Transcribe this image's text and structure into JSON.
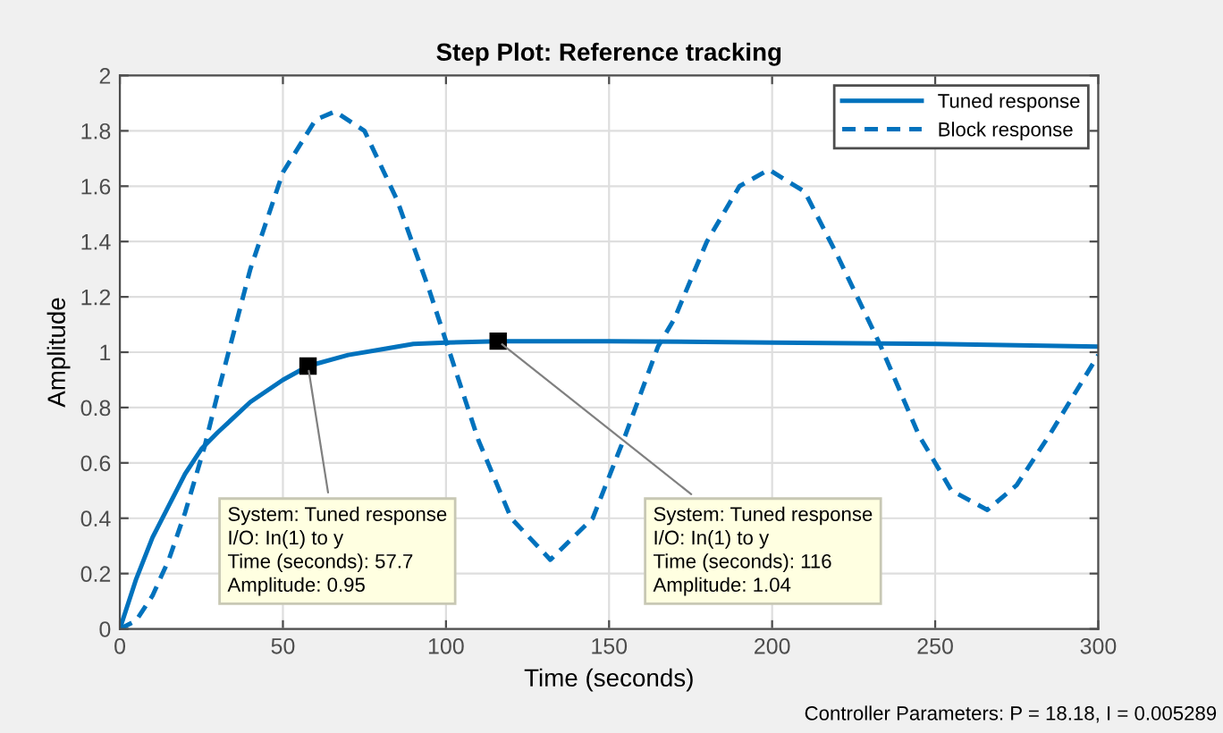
{
  "chart_data": {
    "type": "line",
    "title": "Step Plot: Reference tracking",
    "xlabel": "Time (seconds)",
    "ylabel": "Amplitude",
    "xlim": [
      0,
      300
    ],
    "ylim": [
      0,
      2
    ],
    "xticks": [
      0,
      50,
      100,
      150,
      200,
      250,
      300
    ],
    "yticks": [
      0,
      0.2,
      0.4,
      0.6,
      0.8,
      1,
      1.2,
      1.4,
      1.6,
      1.8,
      2
    ],
    "grid": true,
    "legend": "top right",
    "marker": "none",
    "series": [
      {
        "name": "Tuned response",
        "color": "#0072bd",
        "line_style": "solid",
        "x": [
          0,
          5,
          10,
          20,
          25,
          30,
          40,
          50,
          57.7,
          70,
          80,
          90,
          100,
          116,
          150,
          200,
          250,
          300
        ],
        "values": [
          0,
          0.18,
          0.33,
          0.56,
          0.65,
          0.71,
          0.82,
          0.9,
          0.95,
          0.99,
          1.01,
          1.03,
          1.035,
          1.04,
          1.04,
          1.035,
          1.03,
          1.02
        ]
      },
      {
        "name": "Block response",
        "color": "#0072bd",
        "line_style": "dashed",
        "x": [
          0,
          5,
          10,
          15,
          20,
          26,
          30,
          40,
          50,
          60,
          66,
          75,
          85,
          95,
          100,
          110,
          120,
          132,
          145,
          155,
          165,
          170,
          180,
          190,
          199,
          210,
          220,
          233,
          245,
          255,
          266,
          275,
          285,
          300
        ],
        "values": [
          0,
          0.03,
          0.12,
          0.25,
          0.42,
          0.66,
          0.85,
          1.3,
          1.65,
          1.84,
          1.87,
          1.8,
          1.55,
          1.22,
          1.04,
          0.68,
          0.4,
          0.25,
          0.4,
          0.7,
          1.02,
          1.12,
          1.4,
          1.6,
          1.66,
          1.58,
          1.35,
          1.03,
          0.7,
          0.5,
          0.43,
          0.52,
          0.7,
          0.99
        ]
      }
    ],
    "annotations": [
      {
        "text": "System: Tuned response\nI/O: In(1) to y\nTime (seconds): 57.7\nAmplitude: 0.95",
        "x": 57.7,
        "y": 0.95
      },
      {
        "text": "System: Tuned response\nI/O: In(1) to y\nTime (seconds): 116\nAmplitude: 1.04",
        "x": 116,
        "y": 1.04
      },
      "Controller Parameters: P = 18.18, I = 0.005289"
    ]
  }
}
